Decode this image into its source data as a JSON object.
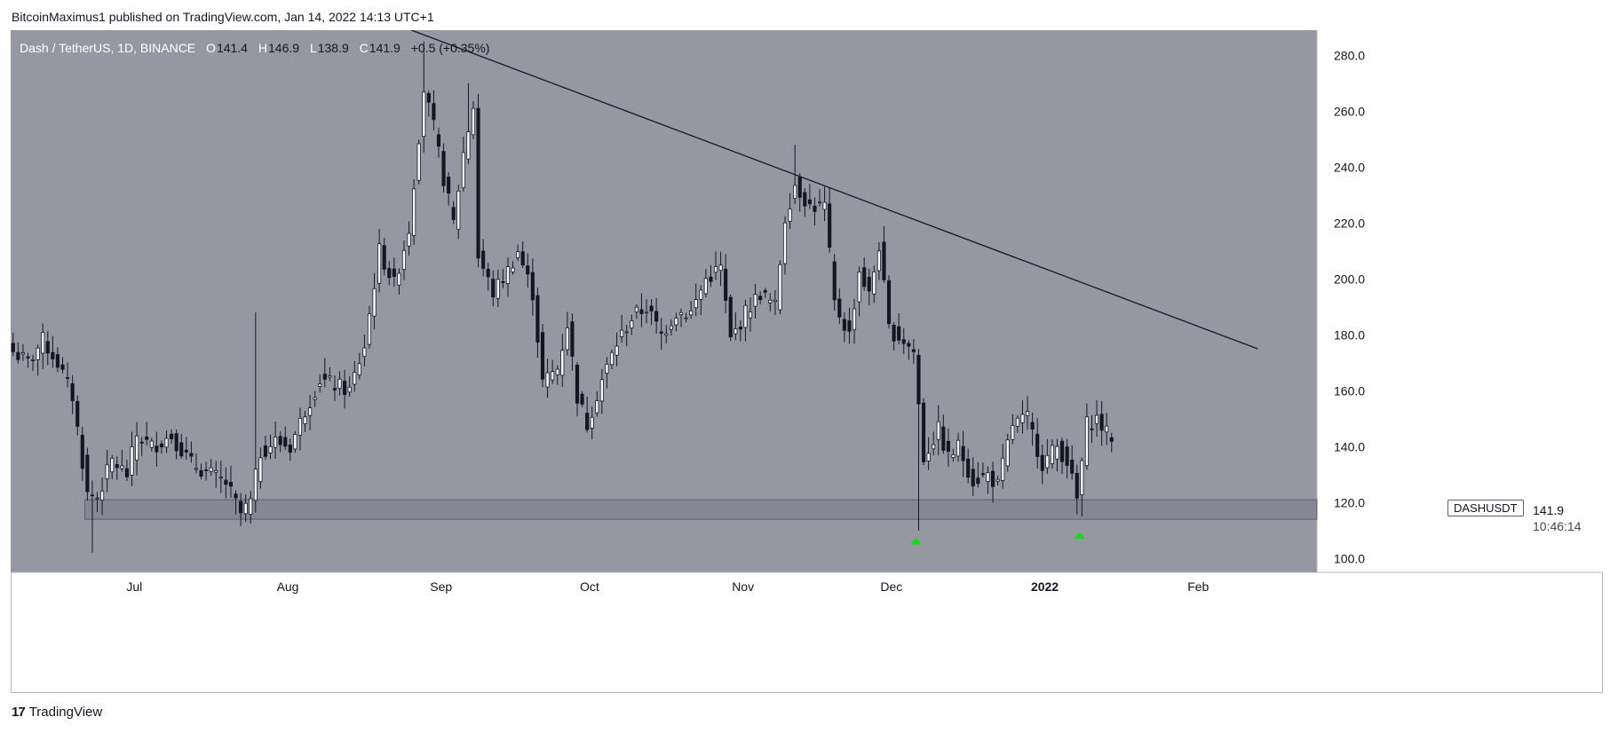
{
  "header": {
    "publisher_line": "BitcoinMaximus1 published on TradingView.com, Jan 14, 2022 14:13 UTC+1"
  },
  "legend": {
    "symbol": "Dash / TetherUS, 1D, BINANCE",
    "open_key": "O",
    "open": "141.4",
    "high_key": "H",
    "high": "146.9",
    "low_key": "L",
    "low": "138.9",
    "close_key": "C",
    "close": "141.9",
    "change": "+0.5 (+0.35%)"
  },
  "price_axis": {
    "currency": "USDT"
  },
  "last_price": {
    "symbol": "DASHUSDT",
    "price": "141.9",
    "countdown": "10:46:14"
  },
  "brand": {
    "name": "TradingView",
    "logo_text": "17"
  },
  "colors": {
    "plot_background": "#9598a1",
    "candle_up": "#ffffff",
    "candle_down": "#131722",
    "trendline": "#131722",
    "support_zone": "#787b86",
    "arrow": "#00e600"
  },
  "chart_data": {
    "type": "candlestick",
    "title": "Dash / TetherUS, 1D, BINANCE",
    "ylim": [
      95,
      289
    ],
    "y_ticks": [
      100,
      120,
      140,
      160,
      180,
      200,
      220,
      240,
      260,
      280
    ],
    "y_tick_labels": [
      "100.0",
      "120.0",
      "140.0",
      "160.0",
      "180.0",
      "200.0",
      "220.0",
      "240.0",
      "260.0",
      "280.0"
    ],
    "x_axis": {
      "start": "2021-06-06",
      "end": "2022-02-25",
      "ticks": [
        {
          "date": "2021-07-01",
          "label": "Jul",
          "bold": false
        },
        {
          "date": "2021-08-01",
          "label": "Aug",
          "bold": false
        },
        {
          "date": "2021-09-01",
          "label": "Sep",
          "bold": false
        },
        {
          "date": "2021-10-01",
          "label": "Oct",
          "bold": false
        },
        {
          "date": "2021-11-01",
          "label": "Nov",
          "bold": false
        },
        {
          "date": "2021-12-01",
          "label": "Dec",
          "bold": false
        },
        {
          "date": "2022-01-01",
          "label": "2022",
          "bold": true
        },
        {
          "date": "2022-02-01",
          "label": "Feb",
          "bold": false
        }
      ]
    },
    "anchors": [
      [
        "2021-06-06",
        174
      ],
      [
        "2021-06-09",
        170
      ],
      [
        "2021-06-12",
        178
      ],
      [
        "2021-06-15",
        170
      ],
      [
        "2021-06-18",
        158
      ],
      [
        "2021-06-21",
        123
      ],
      [
        "2021-06-23",
        122
      ],
      [
        "2021-06-26",
        135
      ],
      [
        "2021-06-29",
        130
      ],
      [
        "2021-07-01",
        144
      ],
      [
        "2021-07-04",
        140
      ],
      [
        "2021-07-08",
        144
      ],
      [
        "2021-07-12",
        134
      ],
      [
        "2021-07-16",
        130
      ],
      [
        "2021-07-19",
        127
      ],
      [
        "2021-07-22",
        116
      ],
      [
        "2021-07-24",
        120
      ],
      [
        "2021-07-26",
        138
      ],
      [
        "2021-07-29",
        142
      ],
      [
        "2021-08-01",
        140
      ],
      [
        "2021-08-04",
        153
      ],
      [
        "2021-08-07",
        164
      ],
      [
        "2021-08-10",
        162
      ],
      [
        "2021-08-13",
        160
      ],
      [
        "2021-08-16",
        176
      ],
      [
        "2021-08-19",
        210
      ],
      [
        "2021-08-22",
        198
      ],
      [
        "2021-08-25",
        218
      ],
      [
        "2021-08-28",
        268
      ],
      [
        "2021-08-30",
        254
      ],
      [
        "2021-09-01",
        236
      ],
      [
        "2021-09-03",
        220
      ],
      [
        "2021-09-05",
        245
      ],
      [
        "2021-09-07",
        262
      ],
      [
        "2021-09-08",
        208
      ],
      [
        "2021-09-11",
        195
      ],
      [
        "2021-09-14",
        203
      ],
      [
        "2021-09-16",
        210
      ],
      [
        "2021-09-19",
        195
      ],
      [
        "2021-09-21",
        163
      ],
      [
        "2021-09-24",
        168
      ],
      [
        "2021-09-26",
        184
      ],
      [
        "2021-09-28",
        158
      ],
      [
        "2021-09-30",
        148
      ],
      [
        "2021-10-03",
        164
      ],
      [
        "2021-10-06",
        177
      ],
      [
        "2021-10-09",
        186
      ],
      [
        "2021-10-12",
        190
      ],
      [
        "2021-10-15",
        180
      ],
      [
        "2021-10-18",
        188
      ],
      [
        "2021-10-21",
        188
      ],
      [
        "2021-10-24",
        200
      ],
      [
        "2021-10-27",
        204
      ],
      [
        "2021-10-29",
        178
      ],
      [
        "2021-11-01",
        188
      ],
      [
        "2021-11-04",
        195
      ],
      [
        "2021-11-07",
        190
      ],
      [
        "2021-11-09",
        222
      ],
      [
        "2021-11-11",
        234
      ],
      [
        "2021-11-14",
        226
      ],
      [
        "2021-11-17",
        226
      ],
      [
        "2021-11-19",
        191
      ],
      [
        "2021-11-22",
        180
      ],
      [
        "2021-11-24",
        203
      ],
      [
        "2021-11-26",
        194
      ],
      [
        "2021-11-28",
        212
      ],
      [
        "2021-11-30",
        182
      ],
      [
        "2021-12-03",
        178
      ],
      [
        "2021-12-05",
        174
      ],
      [
        "2021-12-07",
        136
      ],
      [
        "2021-12-10",
        146
      ],
      [
        "2021-12-12",
        136
      ],
      [
        "2021-12-14",
        140
      ],
      [
        "2021-12-17",
        128
      ],
      [
        "2021-12-20",
        130
      ],
      [
        "2021-12-22",
        126
      ],
      [
        "2021-12-25",
        148
      ],
      [
        "2021-12-28",
        150
      ],
      [
        "2021-12-31",
        134
      ],
      [
        "2022-01-03",
        140
      ],
      [
        "2022-01-05",
        135
      ],
      [
        "2022-01-07",
        121
      ],
      [
        "2022-01-09",
        148
      ],
      [
        "2022-01-11",
        150
      ],
      [
        "2022-01-14",
        141.9
      ]
    ],
    "lows": [
      {
        "date": "2021-06-22",
        "low": 102
      },
      {
        "date": "2021-07-23",
        "low": 113
      },
      {
        "date": "2021-12-06",
        "low": 110
      },
      {
        "date": "2022-01-08",
        "low": 115
      }
    ],
    "highs": [
      {
        "date": "2021-07-25",
        "high": 188
      },
      {
        "date": "2021-08-28",
        "high": 285
      },
      {
        "date": "2021-09-06",
        "high": 270
      },
      {
        "date": "2021-11-11",
        "high": 248
      }
    ],
    "trendline": {
      "start": [
        "2021-08-26",
        289
      ],
      "end": [
        "2022-02-13",
        175
      ]
    },
    "support_zone": {
      "start": "2021-06-21",
      "end": "2022-02-25",
      "low": 114,
      "high": 121
    },
    "markers": [
      {
        "date": "2021-12-06",
        "price": 106,
        "shape": "arrow-up"
      },
      {
        "date": "2022-01-08",
        "price": 108,
        "shape": "arrow-up"
      }
    ]
  }
}
